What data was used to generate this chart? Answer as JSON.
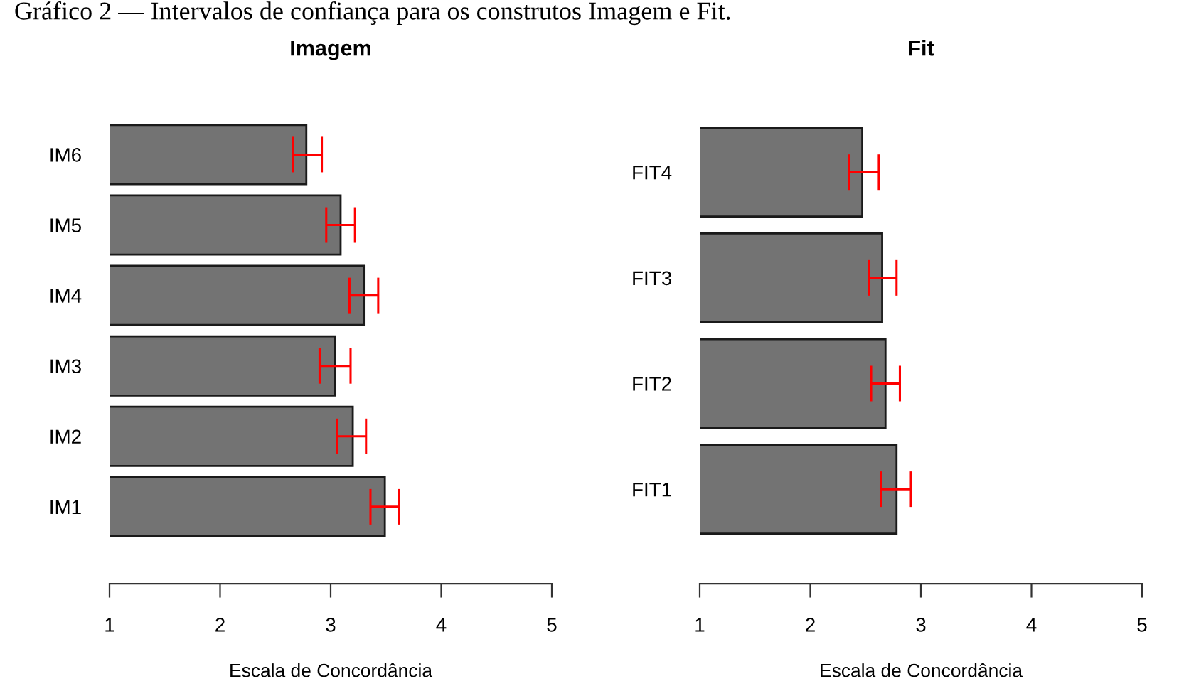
{
  "chart_data": [
    {
      "type": "bar",
      "orientation": "horizontal",
      "title": "Imagem",
      "xlabel": "Escala de Concordância",
      "annotations": [
        "Gráfico 2 — Intervalos de confiança para os construtos Imagem e Fit."
      ],
      "categories": [
        "IM6",
        "IM5",
        "IM4",
        "IM3",
        "IM2",
        "IM1"
      ],
      "series": [
        {
          "color": "#737373",
          "values": [
            2.78,
            3.09,
            3.3,
            3.04,
            3.2,
            3.49
          ],
          "errors": [
            [
              2.66,
              2.92
            ],
            [
              2.96,
              3.22
            ],
            [
              3.17,
              3.43
            ],
            [
              2.9,
              3.18
            ],
            [
              3.06,
              3.32
            ],
            [
              3.36,
              3.62
            ]
          ]
        }
      ],
      "xlim": [
        1,
        5
      ],
      "xticks": [
        1,
        2,
        3,
        4,
        5
      ],
      "grid": false,
      "legend": false
    },
    {
      "type": "bar",
      "orientation": "horizontal",
      "title": "Fit",
      "xlabel": "Escala de Concordância",
      "categories": [
        "FIT4",
        "FIT3",
        "FIT2",
        "FIT1"
      ],
      "series": [
        {
          "color": "#737373",
          "values": [
            2.47,
            2.65,
            2.68,
            2.78
          ],
          "errors": [
            [
              2.35,
              2.62
            ],
            [
              2.53,
              2.78
            ],
            [
              2.55,
              2.81
            ],
            [
              2.64,
              2.91
            ]
          ]
        }
      ],
      "xlim": [
        1,
        5
      ],
      "xticks": [
        1,
        2,
        3,
        4,
        5
      ],
      "grid": false,
      "legend": false
    }
  ]
}
